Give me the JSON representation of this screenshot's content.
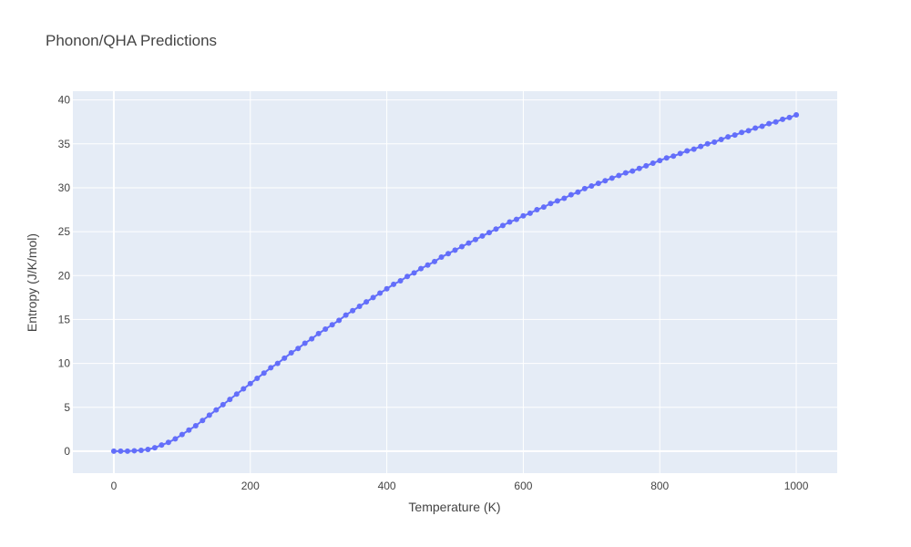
{
  "chart_data": {
    "type": "line",
    "title": "Phonon/QHA Predictions",
    "x_label": "Temperature (K)",
    "y_label": "Entropy (J/K/mol)",
    "color": "#636efa",
    "grid": true,
    "xlim": [
      -60,
      1060
    ],
    "ylim": [
      -2.5,
      41
    ],
    "xticks": [
      0,
      200,
      400,
      600,
      800,
      1000
    ],
    "yticks": [
      0,
      5,
      10,
      15,
      20,
      25,
      30,
      35,
      40
    ],
    "x": [
      0,
      10,
      20,
      30,
      40,
      50,
      60,
      70,
      80,
      90,
      100,
      110,
      120,
      130,
      140,
      150,
      160,
      170,
      180,
      190,
      200,
      210,
      220,
      230,
      240,
      250,
      260,
      270,
      280,
      290,
      300,
      310,
      320,
      330,
      340,
      350,
      360,
      370,
      380,
      390,
      400,
      410,
      420,
      430,
      440,
      450,
      460,
      470,
      480,
      490,
      500,
      510,
      520,
      530,
      540,
      550,
      560,
      570,
      580,
      590,
      600,
      610,
      620,
      630,
      640,
      650,
      660,
      670,
      680,
      690,
      700,
      710,
      720,
      730,
      740,
      750,
      760,
      770,
      780,
      790,
      800,
      810,
      820,
      830,
      840,
      850,
      860,
      870,
      880,
      890,
      900,
      910,
      920,
      930,
      940,
      950,
      960,
      970,
      980,
      990,
      1000
    ],
    "values": [
      0,
      0,
      0,
      0.05,
      0.1,
      0.2,
      0.4,
      0.7,
      1.0,
      1.4,
      1.9,
      2.4,
      2.9,
      3.5,
      4.1,
      4.7,
      5.3,
      5.9,
      6.5,
      7.1,
      7.7,
      8.3,
      8.9,
      9.5,
      10.0,
      10.6,
      11.2,
      11.7,
      12.3,
      12.8,
      13.4,
      13.9,
      14.4,
      14.9,
      15.5,
      16.0,
      16.5,
      17.0,
      17.5,
      18.0,
      18.5,
      19.0,
      19.4,
      19.9,
      20.3,
      20.8,
      21.2,
      21.6,
      22.1,
      22.5,
      22.9,
      23.3,
      23.7,
      24.1,
      24.5,
      24.9,
      25.3,
      25.7,
      26.1,
      26.4,
      26.8,
      27.1,
      27.5,
      27.8,
      28.2,
      28.5,
      28.8,
      29.2,
      29.5,
      29.9,
      30.2,
      30.5,
      30.8,
      31.1,
      31.4,
      31.7,
      31.9,
      32.2,
      32.5,
      32.8,
      33.1,
      33.4,
      33.6,
      33.9,
      34.2,
      34.4,
      34.7,
      35.0,
      35.2,
      35.5,
      35.8,
      36.0,
      36.3,
      36.5,
      36.8,
      37.0,
      37.3,
      37.5,
      37.8,
      38.0,
      38.3
    ]
  }
}
